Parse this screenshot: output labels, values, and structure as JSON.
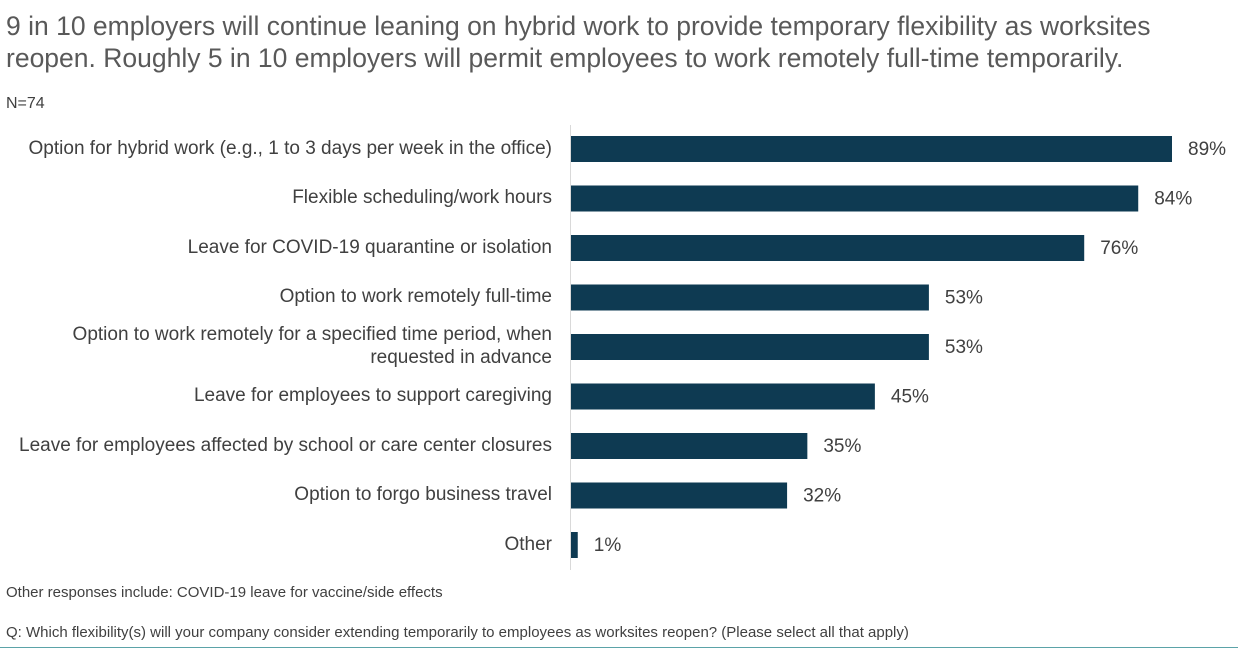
{
  "chart_data": {
    "type": "bar",
    "orientation": "horizontal",
    "title": "9 in 10 employers will continue leaning on hybrid work to provide temporary flexibility as worksites reopen. Roughly 5 in 10 employers will permit employees to work remotely full-time temporarily.",
    "subtitle": "N=74",
    "categories": [
      "Option for hybrid work (e.g., 1 to 3 days per week in the office)",
      "Flexible scheduling/work hours",
      "Leave for COVID-19 quarantine or isolation",
      "Option to work remotely full-time",
      "Option to work remotely for a specified time period, when requested in advance",
      "Leave for employees to support caregiving",
      "Leave for employees affected by school or care center closures",
      "Option to forgo business travel",
      "Other"
    ],
    "values": [
      89,
      84,
      76,
      53,
      53,
      45,
      35,
      32,
      1
    ],
    "value_labels": [
      "89%",
      "84%",
      "76%",
      "53%",
      "53%",
      "45%",
      "35%",
      "32%",
      "1%"
    ],
    "color": "#0e3a52",
    "footnotes": [
      "Other responses include: COVID-19 leave for vaccine/side effects",
      "Q: Which flexibility(s) will your company consider extending temporarily to employees as worksites reopen? (Please select all that apply)"
    ]
  }
}
